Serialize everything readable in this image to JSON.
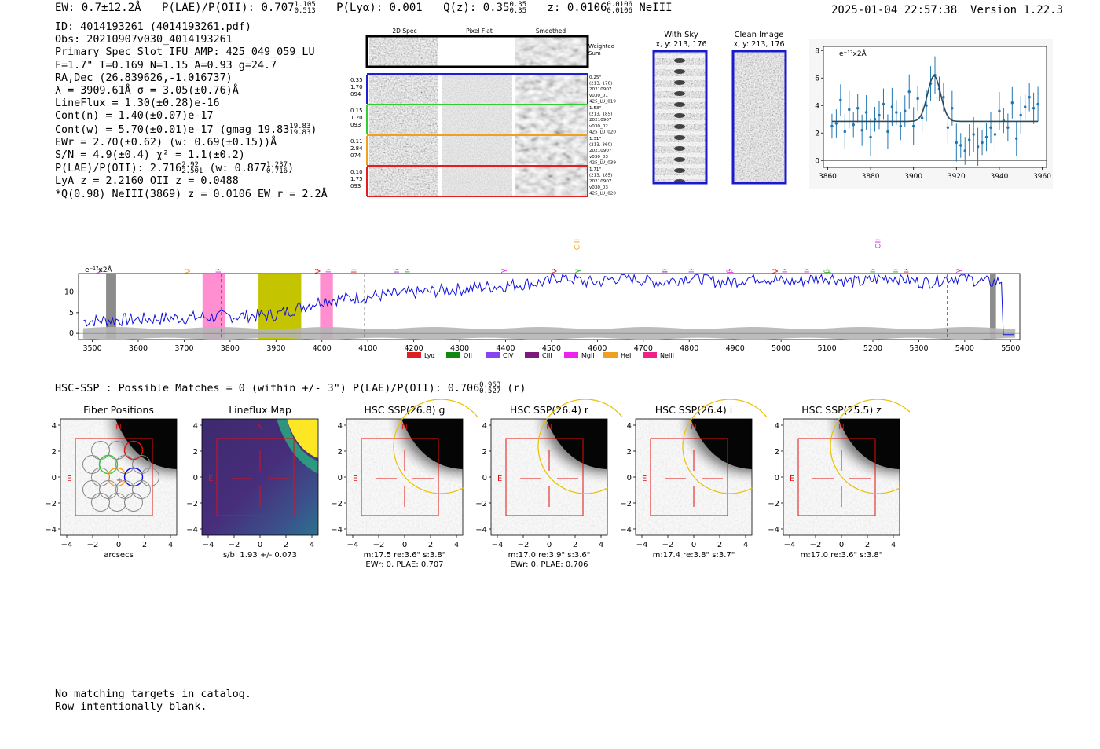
{
  "header": {
    "ew": "EW: 0.7±12.2Å",
    "plae_label": "P(LAE)/P(OII): 0.707",
    "plae_hi": "1.105",
    "plae_lo": "0.513",
    "plya": "P(Lyα): 0.001",
    "qz_label": "Q(z): 0.35",
    "qz_hi": "0.35",
    "qz_lo": "0.35",
    "z_label": "z: 0.0106",
    "z_hi": "0.0106",
    "z_lo": "0.0106",
    "z_line": "NeIII",
    "datetime": "2025-01-04 22:57:38",
    "version": "Version 1.22.3"
  },
  "info": {
    "id": "ID: 4014193261 (4014193261.pdf)",
    "obs": "Obs: 20210907v030_4014193261",
    "primary": "Primary Spec_Slot_IFU_AMP: 425_049_059_LU",
    "params": "F=1.7\"  T=0.169  N=1.15  A=0.93  g=24.7",
    "radec": "RA,Dec (26.839626,-1.016737)",
    "lambda": "λ = 3909.61Å  σ = 3.05(±0.76)Å",
    "lineflux": "LineFlux = 1.30(±0.28)e-16",
    "contn": "Cont(n) = 1.40(±0.07)e-17",
    "contw_main": "Cont(w) = 5.70(±0.01)e-17 (gmag 19.83",
    "contw_hi": "19.83",
    "contw_lo": "19.83",
    "ewr": "EWr = 2.70(±0.62) (w: 0.69(±0.15))Å",
    "sn": "S/N = 4.9(±0.4)  χ² = 1.1(±0.2)",
    "plae_main": "P(LAE)/P(OII): 2.716",
    "plae_hi": "2.92",
    "plae_lo": "2.501",
    "plae_w": "(w: 0.877",
    "plae_w_hi": "1.237",
    "plae_w_lo": "0.716",
    "lya": "LyA z = 2.2160  OII z = 0.0488",
    "q": "*Q(0.98) NeIII(3869) z = 0.0106  EW r = 2.2Å"
  },
  "cutouts": {
    "col_2d": "2D Spec",
    "col_flat": "Pixel Flat",
    "col_smooth": "Smoothed",
    "weighted_sum": "Weighted Sum",
    "rows": [
      {
        "color": "#1f1fcf",
        "l1": "0.35",
        "l2": "1.70",
        "l3": "094",
        "r1": "0.25\"",
        "r2": "(213, 176)",
        "r3": "20210907",
        "r4": "v030_01",
        "r5": "425_LU_019"
      },
      {
        "color": "#33cc33",
        "l1": "0.15",
        "l2": "1.20",
        "l3": "093",
        "r1": "1.53\"",
        "r2": "(213, 185)",
        "r3": "20210907",
        "r4": "v030_02",
        "r5": "425_LU_020"
      },
      {
        "color": "#f0a020",
        "l1": "0.11",
        "l2": "2.84",
        "l3": "074",
        "r1": "1.31\"",
        "r2": "(213, 360)",
        "r3": "20210907",
        "r4": "v030_03",
        "r5": "425_LU_039"
      },
      {
        "color": "#e02020",
        "l1": "0.10",
        "l2": "1.75",
        "l3": "093",
        "r1": "1.71\"",
        "r2": "(213, 185)",
        "r3": "20210907",
        "r4": "v030_03",
        "r5": "425_LU_020"
      }
    ]
  },
  "sky": {
    "with_sky_title": "With Sky",
    "with_sky_xy": "x, y: 213, 176",
    "clean_title": "Clean Image",
    "clean_xy": "x, y: 213, 176"
  },
  "fit_plot": {
    "ylabel": "e⁻¹⁷x2Å",
    "x_ticks": [
      "3860",
      "3880",
      "3900",
      "3920",
      "3940",
      "3960"
    ],
    "y_ticks": [
      "0",
      "2",
      "4",
      "6",
      "8"
    ],
    "xlim": [
      3858,
      3962
    ],
    "ylim": [
      -0.5,
      8.3
    ],
    "continuum": 2.85,
    "peak_center": 3909.6,
    "peak_amp": 3.3,
    "peak_sigma": 3.05,
    "x": [
      3862,
      3864,
      3866,
      3868,
      3870,
      3872,
      3874,
      3876,
      3878,
      3880,
      3882,
      3884,
      3886,
      3888,
      3890,
      3892,
      3894,
      3896,
      3898,
      3900,
      3902,
      3904,
      3906,
      3908,
      3910,
      3912,
      3914,
      3916,
      3918,
      3920,
      3922,
      3924,
      3926,
      3928,
      3930,
      3932,
      3934,
      3936,
      3938,
      3940,
      3942,
      3944,
      3946,
      3948,
      3950,
      3952,
      3954,
      3956,
      3958
    ],
    "y": [
      2.5,
      2.7,
      4.4,
      2.1,
      3.7,
      2.6,
      3.8,
      2.2,
      3.5,
      1.7,
      3.0,
      3.3,
      4.1,
      2.1,
      3.9,
      3.5,
      2.5,
      3.6,
      5.0,
      2.5,
      4.5,
      3.1,
      4.0,
      5.6,
      6.2,
      5.2,
      4.6,
      2.4,
      3.8,
      1.3,
      1.1,
      0.7,
      1.5,
      1.9,
      1.0,
      1.3,
      1.7,
      2.4,
      1.9,
      3.6,
      2.9,
      2.4,
      4.2,
      1.6,
      3.3,
      3.9,
      4.6,
      3.8,
      4.1
    ]
  },
  "spectrum": {
    "ylabel": "e⁻¹⁷x2Å",
    "x_ticks": [
      "3500",
      "3600",
      "3700",
      "3800",
      "3900",
      "4000",
      "4100",
      "4200",
      "4300",
      "4400",
      "4500",
      "4600",
      "4700",
      "4800",
      "4900",
      "5000",
      "5100",
      "5200",
      "5300",
      "5400",
      "5500"
    ],
    "y_ticks": [
      "0",
      "5",
      "10"
    ],
    "xlim": [
      3470,
      5520
    ],
    "ylim": [
      -1.5,
      14.5
    ],
    "line_labels": [
      {
        "text": "SiIV",
        "x": 3515,
        "color": "#cc44cc",
        "row": 0
      },
      {
        "text": "CIV",
        "x": 3708,
        "color": "#f0a020",
        "row": 0
      },
      {
        "text": "OII",
        "x": 3775,
        "color": "#dd22dd",
        "row": 0
      },
      {
        "text": "NV",
        "x": 3991,
        "color": "#e02020",
        "row": 0
      },
      {
        "text": "NeIII",
        "x": 4014,
        "color": "#dd22dd",
        "row": 0
      },
      {
        "text": "SiII",
        "x": 4070,
        "color": "#e02020",
        "row": 0
      },
      {
        "text": "HeII",
        "x": 4163,
        "color": "#8844cc",
        "row": 0
      },
      {
        "text": "NeIII",
        "x": 4186,
        "color": "#22aa22",
        "row": 0
      },
      {
        "text": "Hγ",
        "x": 4394,
        "color": "#dd22dd",
        "row": 0
      },
      {
        "text": "SiIV",
        "x": 4506,
        "color": "#e02020",
        "row": 0
      },
      {
        "text": "Hγ",
        "x": 4556,
        "color": "#22aa22",
        "row": 0
      },
      {
        "text": "CIII",
        "x": 4556,
        "color": "#f0a020",
        "row": 1
      },
      {
        "text": "CII",
        "x": 4747,
        "color": "#8800aa",
        "row": 0
      },
      {
        "text": "CIII",
        "x": 4805,
        "color": "#8844ee",
        "row": 0
      },
      {
        "text": "Hβ",
        "x": 4888,
        "color": "#dd22dd",
        "row": 0
      },
      {
        "text": "CIV",
        "x": 4988,
        "color": "#e02020",
        "row": 0
      },
      {
        "text": "OIII",
        "x": 5008,
        "color": "#dd22dd",
        "row": 0
      },
      {
        "text": "OIII",
        "x": 5056,
        "color": "#dd22dd",
        "row": 0
      },
      {
        "text": "Hβ",
        "x": 5100,
        "color": "#22aa22",
        "row": 0
      },
      {
        "text": "OIII",
        "x": 5200,
        "color": "#22aa22",
        "row": 0
      },
      {
        "text": "OII",
        "x": 5211,
        "color": "#dd22dd",
        "row": 1
      },
      {
        "text": "OIII",
        "x": 5250,
        "color": "#22aa22",
        "row": 0
      },
      {
        "text": "HeII",
        "x": 5273,
        "color": "#e02020",
        "row": 0
      },
      {
        "text": "Hγ",
        "x": 5385,
        "color": "#dd22dd",
        "row": 0
      }
    ],
    "legend": [
      {
        "label": "Lyα",
        "color": "#e02020"
      },
      {
        "label": "OII",
        "color": "#118811"
      },
      {
        "label": "CIV",
        "color": "#8844ee"
      },
      {
        "label": "CIII",
        "color": "#7a1a7a"
      },
      {
        "label": "MgII",
        "color": "#ee22ee"
      },
      {
        "label": "HeII",
        "color": "#f0a020"
      },
      {
        "label": "NeIII",
        "color": "#ee2288"
      }
    ]
  },
  "hsc": {
    "header_main": "HSC-SSP : Possible Matches = 0 (within +/- 3\")  P(LAE)/P(OII): 0.706",
    "header_hi": "0.963",
    "header_lo": "0.527",
    "header_band": "(r)",
    "axis_ticks": [
      "−4",
      "−2",
      "0",
      "2",
      "4"
    ],
    "panels": [
      {
        "title": "Fiber Positions",
        "sub1": "arcsecs",
        "sub2": ""
      },
      {
        "title": "Lineflux Map",
        "sub1": "s/b: 1.93 +/- 0.073",
        "sub2": ""
      },
      {
        "title": "HSC SSP(26.8) g",
        "sub1": "m:17.5   re:3.6\"   s:3.8\"",
        "sub2": "EWr: 0, PLAE: 0.707"
      },
      {
        "title": "HSC SSP(26.4) r",
        "sub1": "m:17.0   re:3.9\"   s:3.6\"",
        "sub2": "EWr: 0, PLAE: 0.706"
      },
      {
        "title": "HSC SSP(26.4) i",
        "sub1": "m:17.4   re:3.8\"   s:3.7\"",
        "sub2": ""
      },
      {
        "title": "HSC SSP(25.5) z",
        "sub1": "m:17.0   re:3.6\"   s:3.8\"",
        "sub2": ""
      }
    ],
    "compass_n": "N",
    "compass_e": "E"
  },
  "catalog": {
    "line1": "No matching targets in catalog.",
    "line2": "Row intentionally blank."
  }
}
